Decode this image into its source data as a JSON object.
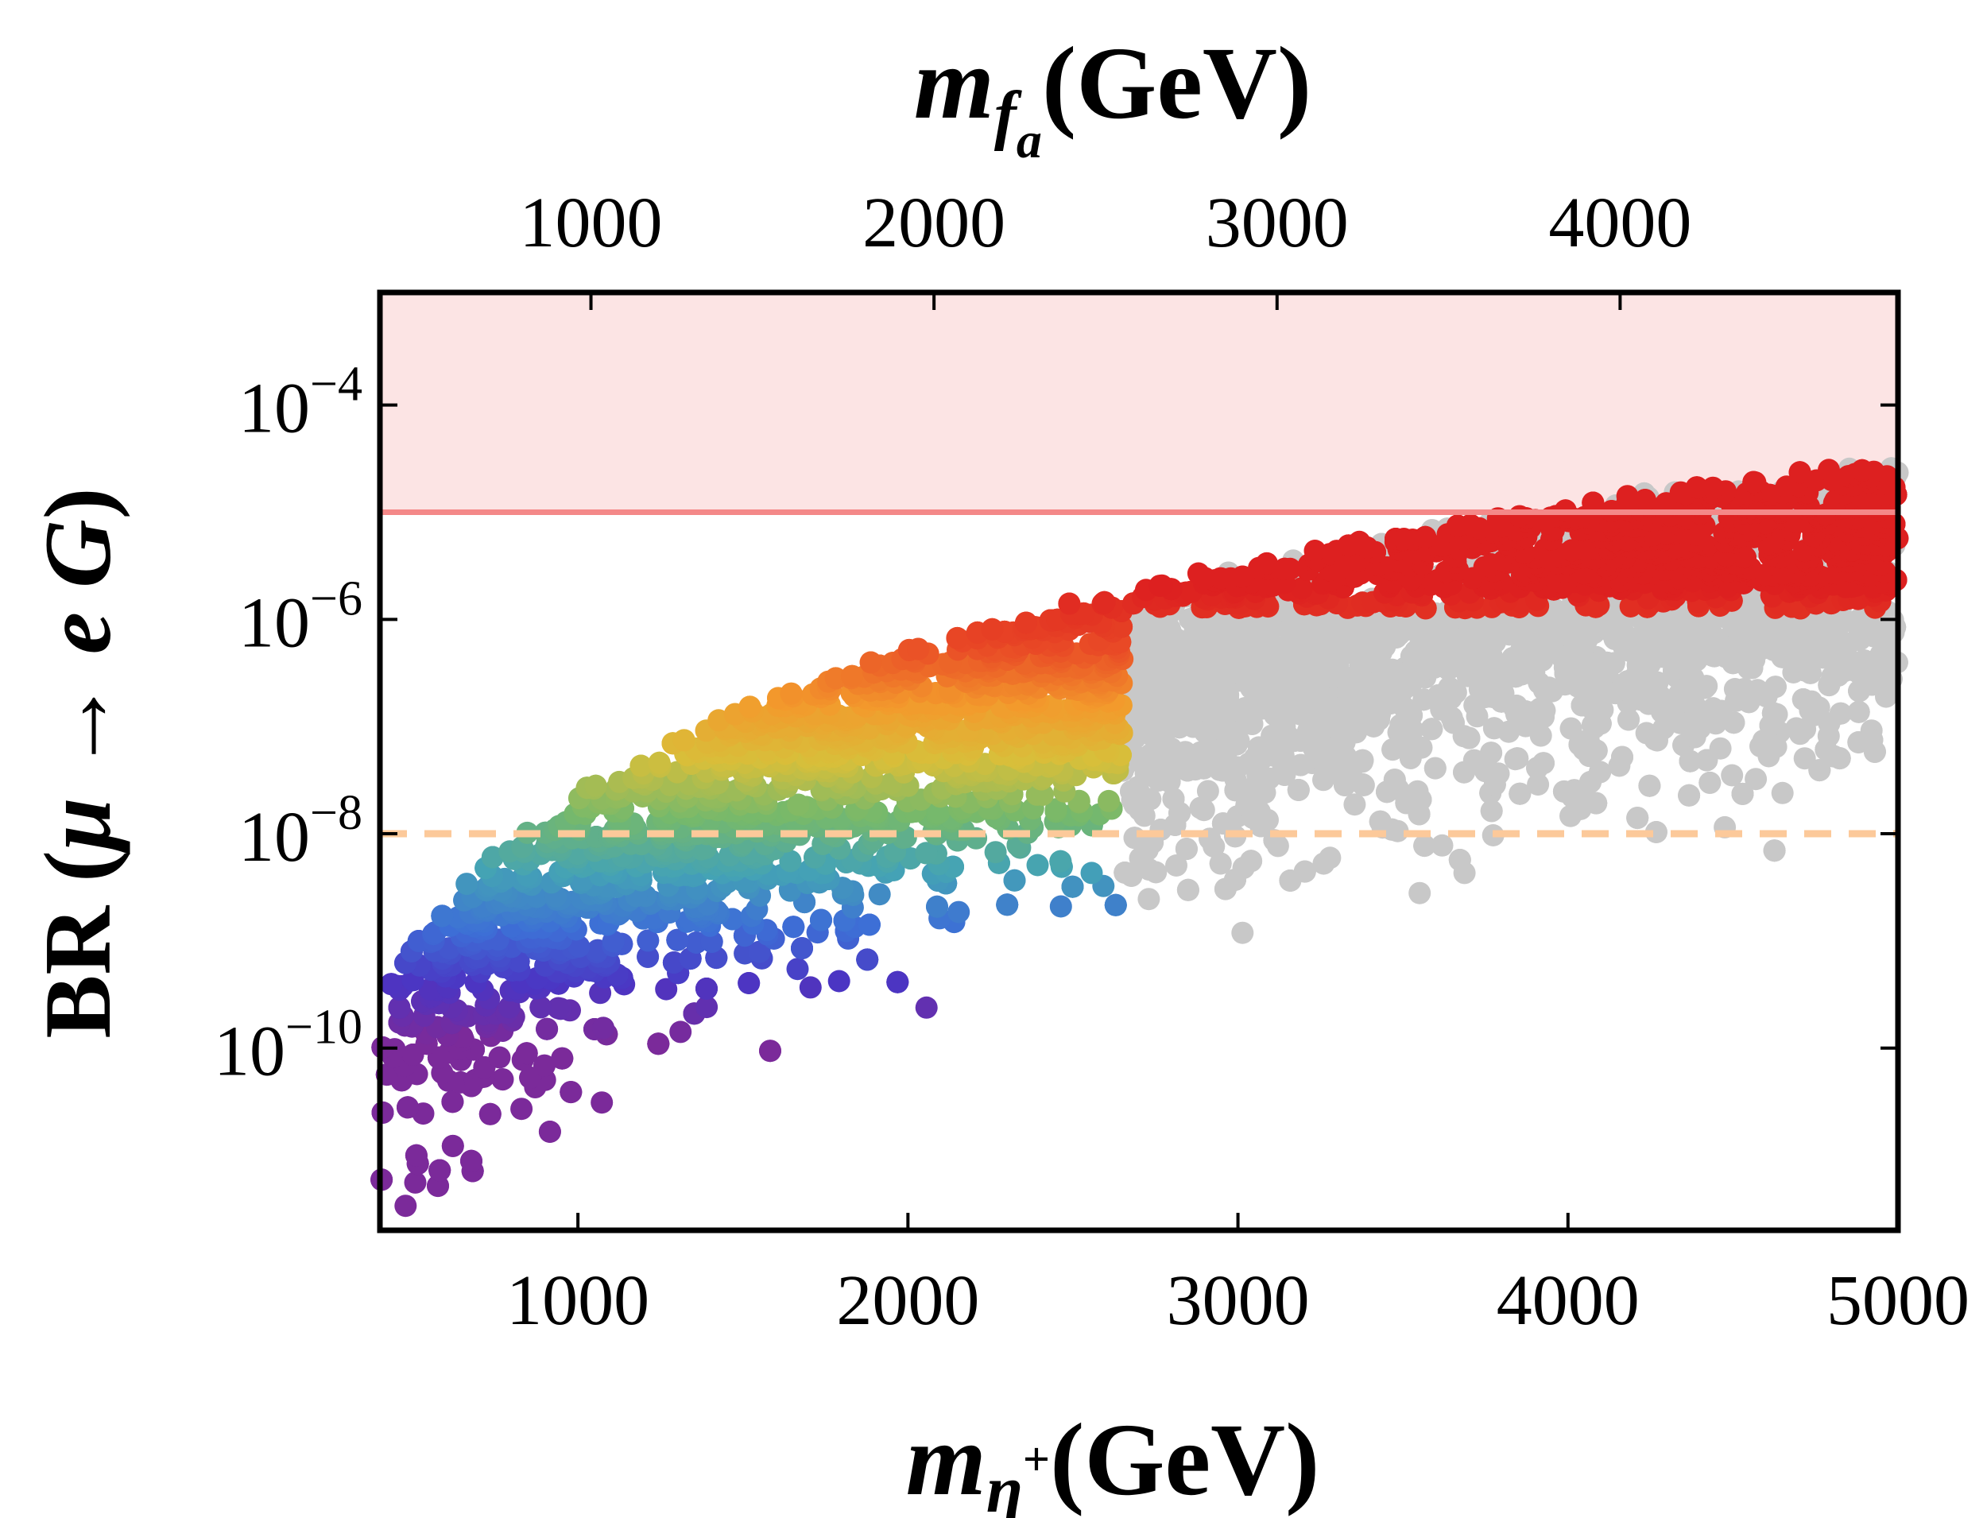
{
  "chart_data": {
    "type": "scatter",
    "title": "",
    "xlabel": {
      "symbol": "m",
      "subscript": "η",
      "superscript": "+",
      "unit": "(GeV)"
    },
    "x2label": {
      "symbol": "m",
      "subscript": "f",
      "subsubscript": "a",
      "unit": "(GeV)"
    },
    "ylabel": {
      "prefix": "BR (",
      "mu": "μ",
      "arrow": " → ",
      "e": "e",
      "G": "G",
      "suffix": ")"
    },
    "xlim": [
      400,
      5000
    ],
    "ylim_log10": [
      -11.7,
      -2.95
    ],
    "yscale": "log",
    "x_ticks": [
      {
        "value": 1000,
        "label": "1000"
      },
      {
        "value": 2000,
        "label": "2000"
      },
      {
        "value": 3000,
        "label": "3000"
      },
      {
        "value": 4000,
        "label": "4000"
      },
      {
        "value": 5000,
        "label": "5000"
      }
    ],
    "x2_ticks": [
      {
        "value": 1000,
        "label": "1000"
      },
      {
        "value": 2000,
        "label": "2000"
      },
      {
        "value": 3000,
        "label": "3000"
      },
      {
        "value": 4000,
        "label": "4000"
      }
    ],
    "x2_scale_vs_x": 0.962,
    "y_ticks": [
      {
        "exp": -4,
        "base": "10",
        "sup": "−4"
      },
      {
        "exp": -6,
        "base": "10",
        "sup": "−6"
      },
      {
        "exp": -8,
        "base": "10",
        "sup": "−8"
      },
      {
        "exp": -10,
        "base": "10",
        "sup": "−10"
      }
    ],
    "excluded_region_above_log10": -5,
    "limit_line_log10": -5,
    "future_limit_line_log10": -8,
    "colors": {
      "excluded_fill": "#fce4e4",
      "limit_line": "#f48888",
      "future_line": "#fcc99a",
      "excluded_points": "#c8c8c8",
      "allowed_high": "#dd2020",
      "frame": "#000000"
    },
    "color_scale": [
      "#7b2a9a",
      "#4b35c3",
      "#3d6fd6",
      "#44a3b5",
      "#76b96b",
      "#d8bf3a",
      "#f39a2c",
      "#e94a26",
      "#dd2020"
    ],
    "series_notes": [
      {
        "name": "",
        "description_of_marks": "gray scatter: excluded points"
      },
      {
        "name": "",
        "description_of_marks": "rainbow scatter: allowed points, color gradient from purple (low BR) to red (high BR)"
      }
    ],
    "grid": false,
    "legend": "none"
  }
}
